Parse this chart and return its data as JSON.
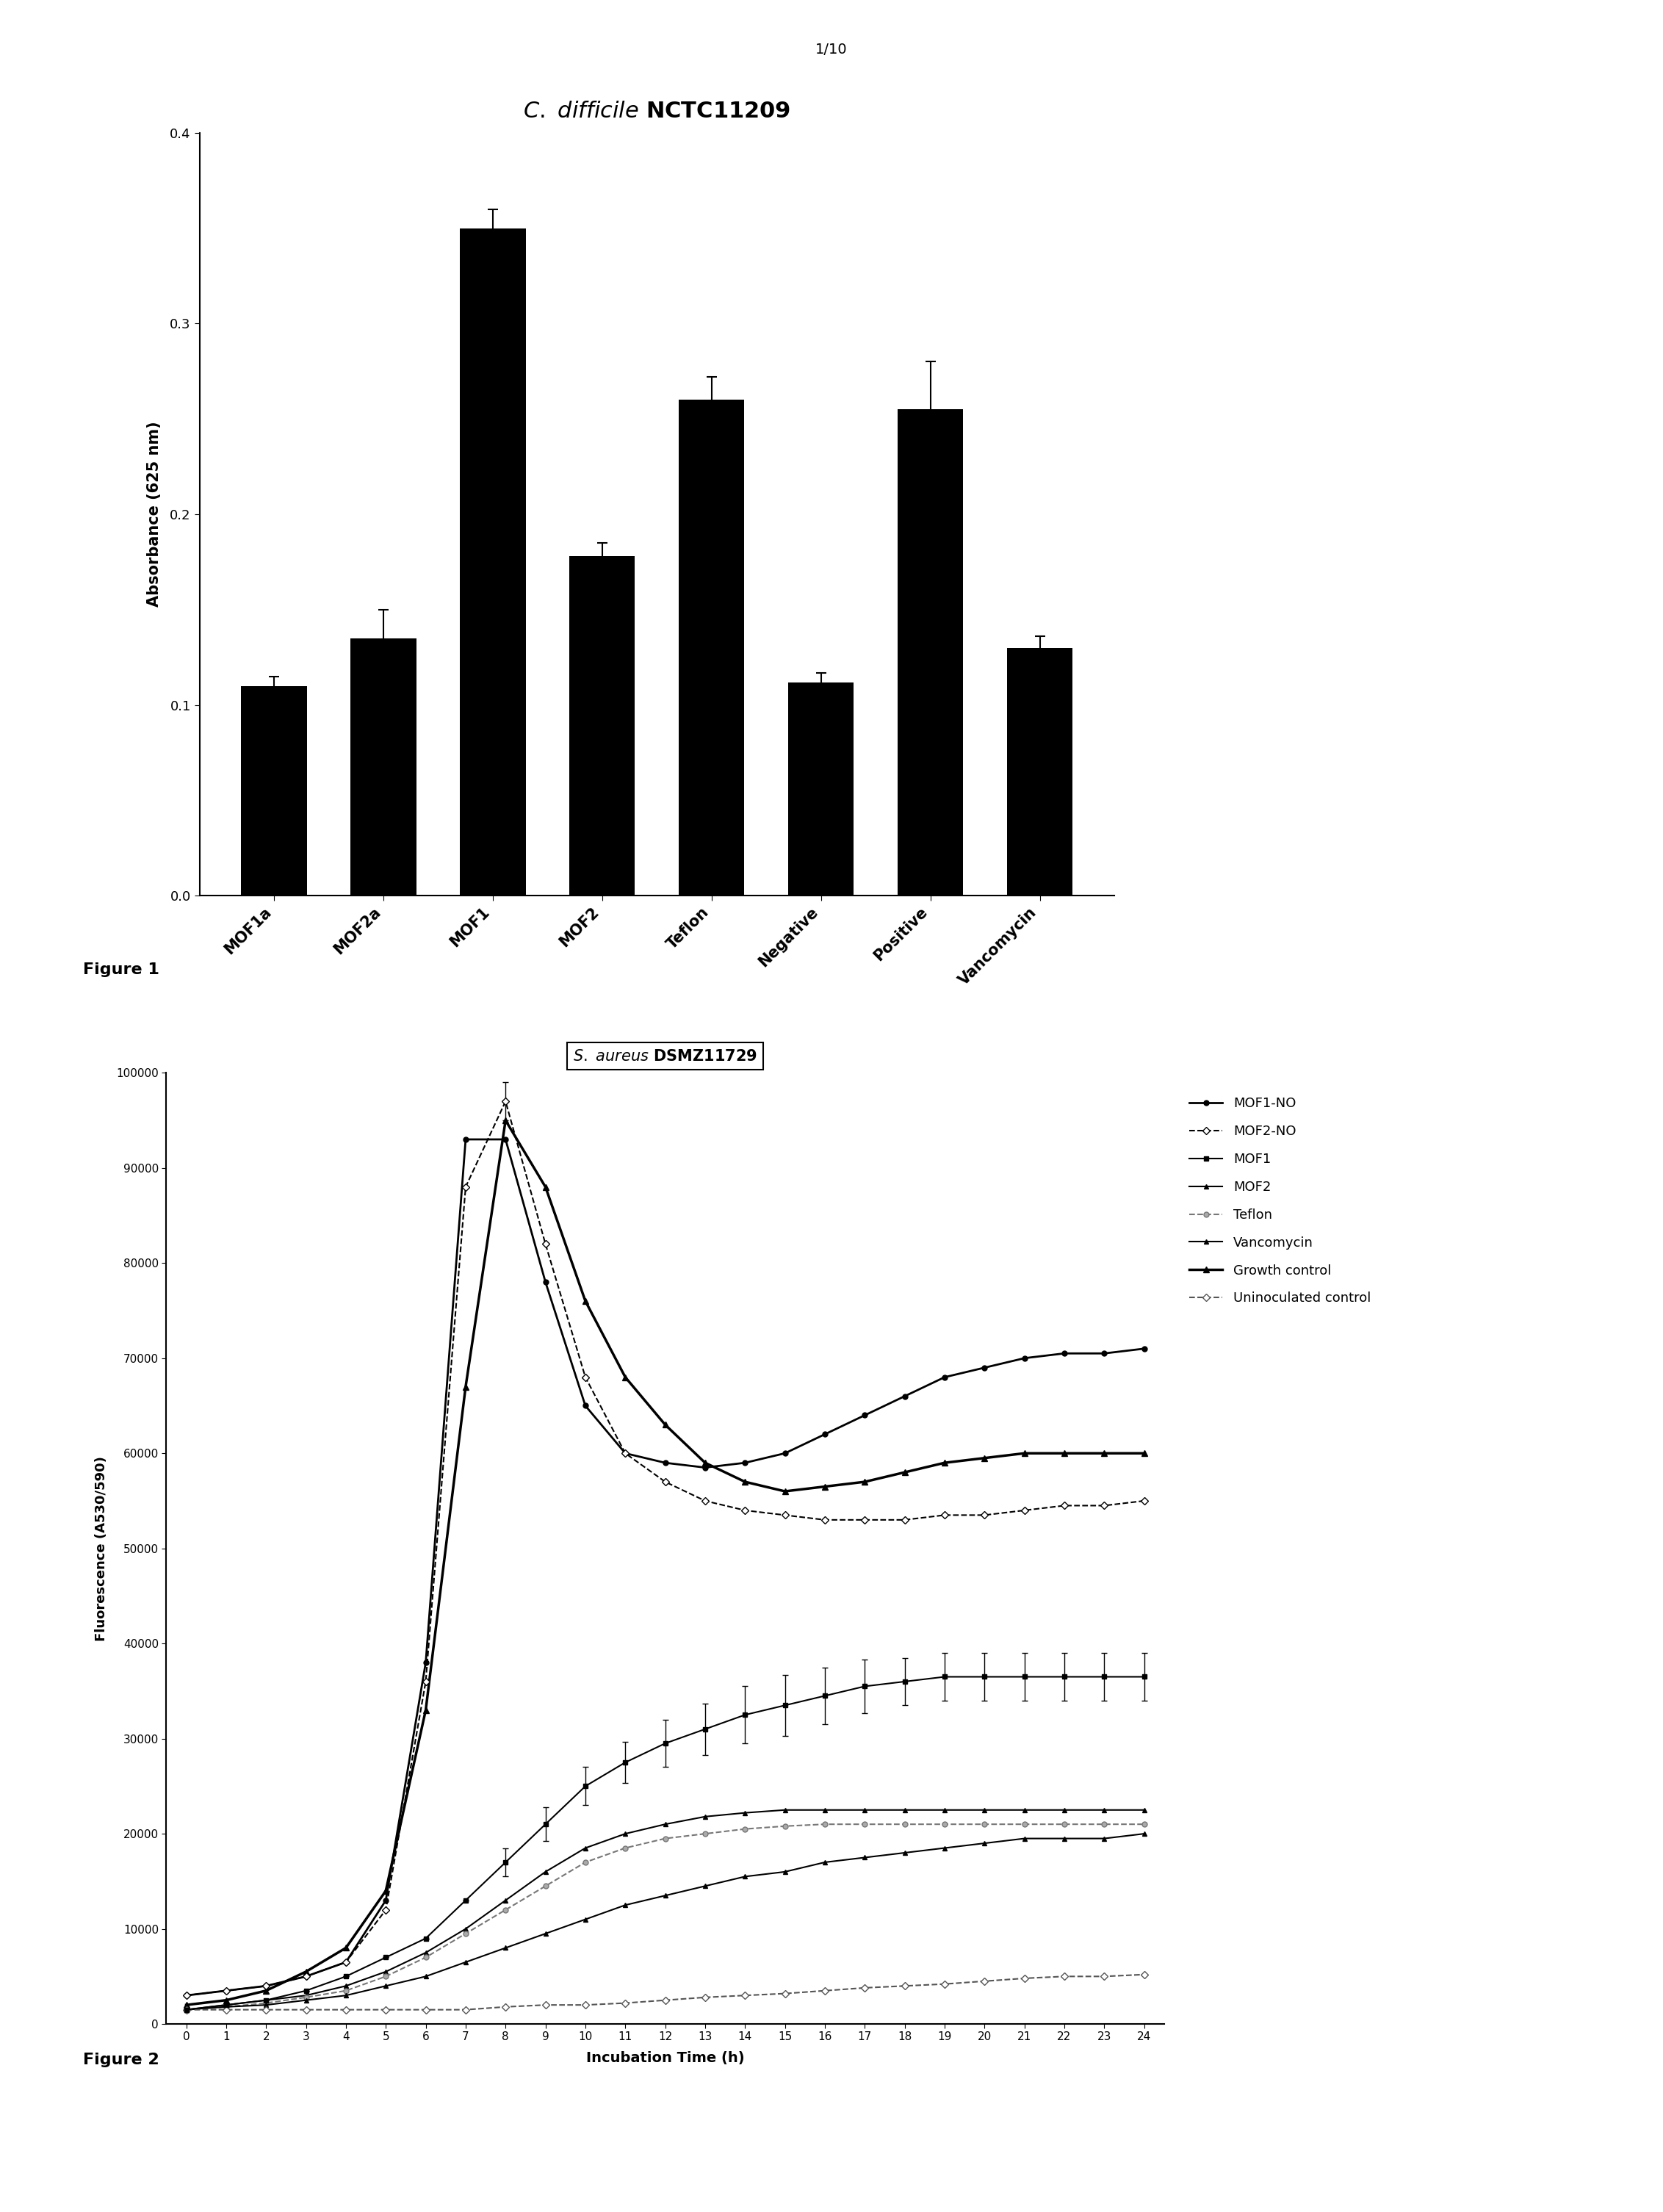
{
  "fig1": {
    "categories": [
      "MOF1a",
      "MOF2a",
      "MOF1",
      "MOF2",
      "Teflon",
      "Negative",
      "Positive",
      "Vancomycin"
    ],
    "values": [
      0.11,
      0.135,
      0.35,
      0.178,
      0.26,
      0.112,
      0.255,
      0.13
    ],
    "errors": [
      0.005,
      0.015,
      0.01,
      0.007,
      0.012,
      0.005,
      0.025,
      0.006
    ],
    "ylabel": "Absorbance (625 nm)",
    "ylim": [
      0.0,
      0.4
    ],
    "yticks": [
      0.0,
      0.1,
      0.2,
      0.3,
      0.4
    ],
    "bar_color": "#000000",
    "bar_width": 0.6
  },
  "fig2": {
    "ylabel": "Fluorescence (A530/590)",
    "xlabel": "Incubation Time (h)",
    "ylim": [
      0,
      100000
    ],
    "yticks": [
      0,
      10000,
      20000,
      30000,
      40000,
      50000,
      60000,
      70000,
      80000,
      90000,
      100000
    ],
    "xticks": [
      0,
      1,
      2,
      3,
      4,
      5,
      6,
      7,
      8,
      9,
      10,
      11,
      12,
      13,
      14,
      15,
      16,
      17,
      18,
      19,
      20,
      21,
      22,
      23,
      24
    ],
    "series": {
      "MOF1-NO": {
        "x": [
          0,
          1,
          2,
          3,
          4,
          5,
          6,
          7,
          8,
          9,
          10,
          11,
          12,
          13,
          14,
          15,
          16,
          17,
          18,
          19,
          20,
          21,
          22,
          23,
          24
        ],
        "y": [
          3000,
          3500,
          4000,
          5000,
          6500,
          13000,
          38000,
          93000,
          93000,
          78000,
          65000,
          60000,
          59000,
          58500,
          59000,
          60000,
          62000,
          64000,
          66000,
          68000,
          69000,
          70000,
          70500,
          70500,
          71000
        ],
        "errors": [
          null,
          null,
          null,
          null,
          null,
          null,
          null,
          null,
          null,
          null,
          null,
          null,
          null,
          null,
          null,
          null,
          null,
          null,
          null,
          null,
          null,
          null,
          null,
          null,
          null
        ],
        "marker": "o",
        "mfc": "#000000",
        "mec": "#000000",
        "ls": "-",
        "lw": 2.0,
        "ms": 5
      },
      "MOF2-NO": {
        "x": [
          0,
          1,
          2,
          3,
          4,
          5,
          6,
          7,
          8,
          9,
          10,
          11,
          12,
          13,
          14,
          15,
          16,
          17,
          18,
          19,
          20,
          21,
          22,
          23,
          24
        ],
        "y": [
          3000,
          3500,
          4000,
          5000,
          6500,
          12000,
          36000,
          88000,
          97000,
          82000,
          68000,
          60000,
          57000,
          55000,
          54000,
          53500,
          53000,
          53000,
          53000,
          53500,
          53500,
          54000,
          54500,
          54500,
          55000
        ],
        "errors": [
          null,
          null,
          null,
          null,
          null,
          null,
          null,
          null,
          2000,
          null,
          null,
          null,
          null,
          null,
          null,
          null,
          null,
          null,
          null,
          null,
          null,
          null,
          null,
          null,
          null
        ],
        "marker": "D",
        "mfc": "#ffffff",
        "mec": "#000000",
        "ls": "--",
        "lw": 1.5,
        "ms": 5
      },
      "MOF1": {
        "x": [
          0,
          1,
          2,
          3,
          4,
          5,
          6,
          7,
          8,
          9,
          10,
          11,
          12,
          13,
          14,
          15,
          16,
          17,
          18,
          19,
          20,
          21,
          22,
          23,
          24
        ],
        "y": [
          1500,
          2000,
          2500,
          3500,
          5000,
          7000,
          9000,
          13000,
          17000,
          21000,
          25000,
          27500,
          29500,
          31000,
          32500,
          33500,
          34500,
          35500,
          36000,
          36500,
          36500,
          36500,
          36500,
          36500,
          36500
        ],
        "errors": [
          null,
          null,
          null,
          null,
          null,
          null,
          null,
          null,
          1500,
          1800,
          2000,
          2200,
          2500,
          2700,
          3000,
          3200,
          3000,
          2800,
          2500,
          2500,
          2500,
          2500,
          2500,
          2500,
          2500
        ],
        "marker": "s",
        "mfc": "#000000",
        "mec": "#000000",
        "ls": "-",
        "lw": 1.5,
        "ms": 5
      },
      "MOF2": {
        "x": [
          0,
          1,
          2,
          3,
          4,
          5,
          6,
          7,
          8,
          9,
          10,
          11,
          12,
          13,
          14,
          15,
          16,
          17,
          18,
          19,
          20,
          21,
          22,
          23,
          24
        ],
        "y": [
          1500,
          2000,
          2500,
          3000,
          4000,
          5500,
          7500,
          10000,
          13000,
          16000,
          18500,
          20000,
          21000,
          21800,
          22200,
          22500,
          22500,
          22500,
          22500,
          22500,
          22500,
          22500,
          22500,
          22500,
          22500
        ],
        "errors": [
          null,
          null,
          null,
          null,
          null,
          null,
          null,
          null,
          null,
          null,
          null,
          null,
          null,
          null,
          null,
          null,
          null,
          null,
          null,
          null,
          null,
          null,
          null,
          null,
          null
        ],
        "marker": "^",
        "mfc": "#000000",
        "mec": "#000000",
        "ls": "-",
        "lw": 1.5,
        "ms": 5
      },
      "Teflon": {
        "x": [
          0,
          1,
          2,
          3,
          4,
          5,
          6,
          7,
          8,
          9,
          10,
          11,
          12,
          13,
          14,
          15,
          16,
          17,
          18,
          19,
          20,
          21,
          22,
          23,
          24
        ],
        "y": [
          1500,
          1800,
          2200,
          2800,
          3500,
          5000,
          7000,
          9500,
          12000,
          14500,
          17000,
          18500,
          19500,
          20000,
          20500,
          20800,
          21000,
          21000,
          21000,
          21000,
          21000,
          21000,
          21000,
          21000,
          21000
        ],
        "errors": [
          null,
          null,
          null,
          null,
          null,
          null,
          null,
          null,
          null,
          null,
          null,
          null,
          null,
          null,
          null,
          null,
          null,
          null,
          null,
          null,
          null,
          null,
          null,
          null,
          null
        ],
        "marker": "o",
        "mfc": "#aaaaaa",
        "mec": "#555555",
        "ls": "--",
        "lw": 1.5,
        "ms": 5
      },
      "Vancomycin": {
        "x": [
          0,
          1,
          2,
          3,
          4,
          5,
          6,
          7,
          8,
          9,
          10,
          11,
          12,
          13,
          14,
          15,
          16,
          17,
          18,
          19,
          20,
          21,
          22,
          23,
          24
        ],
        "y": [
          1500,
          1800,
          2000,
          2500,
          3000,
          4000,
          5000,
          6500,
          8000,
          9500,
          11000,
          12500,
          13500,
          14500,
          15500,
          16000,
          17000,
          17500,
          18000,
          18500,
          19000,
          19500,
          19500,
          19500,
          20000
        ],
        "errors": [
          null,
          null,
          null,
          null,
          null,
          null,
          null,
          null,
          null,
          null,
          null,
          null,
          null,
          null,
          null,
          null,
          null,
          null,
          null,
          null,
          null,
          null,
          null,
          null,
          null
        ],
        "marker": "^",
        "mfc": "#000000",
        "mec": "#000000",
        "ls": "-",
        "lw": 2.0,
        "ms": 5
      },
      "Growth control": {
        "x": [
          0,
          1,
          2,
          3,
          4,
          5,
          6,
          7,
          8,
          9,
          10,
          11,
          12,
          13,
          14,
          15,
          16,
          17,
          18,
          19,
          20,
          21,
          22,
          23,
          24
        ],
        "y": [
          2000,
          2500,
          3500,
          5500,
          8000,
          14000,
          33000,
          67000,
          95000,
          88000,
          76000,
          68000,
          63000,
          59000,
          57000,
          56000,
          56500,
          57000,
          58000,
          59000,
          59500,
          60000,
          60000,
          60000,
          60000
        ],
        "errors": [
          null,
          null,
          null,
          null,
          null,
          null,
          null,
          null,
          null,
          null,
          null,
          null,
          null,
          null,
          null,
          null,
          null,
          null,
          null,
          null,
          null,
          null,
          null,
          null,
          null
        ],
        "marker": "^",
        "mfc": "#000000",
        "mec": "#000000",
        "ls": "-",
        "lw": 2.5,
        "ms": 6
      },
      "Uninoculated control": {
        "x": [
          0,
          1,
          2,
          3,
          4,
          5,
          6,
          7,
          8,
          9,
          10,
          11,
          12,
          13,
          14,
          15,
          16,
          17,
          18,
          19,
          20,
          21,
          22,
          23,
          24
        ],
        "y": [
          1500,
          1500,
          1500,
          1500,
          1500,
          1500,
          1500,
          1500,
          1800,
          2000,
          2000,
          2200,
          2500,
          2800,
          3000,
          3200,
          3500,
          3800,
          4000,
          4200,
          4500,
          4800,
          5000,
          5000,
          5200
        ],
        "errors": [
          null,
          null,
          null,
          null,
          null,
          null,
          null,
          null,
          null,
          null,
          null,
          null,
          null,
          null,
          null,
          null,
          null,
          null,
          null,
          null,
          null,
          null,
          null,
          null,
          null
        ],
        "marker": "D",
        "mfc": "#ffffff",
        "mec": "#000000",
        "ls": "--",
        "lw": 1.5,
        "ms": 5
      }
    },
    "legend_order": [
      "MOF1-NO",
      "MOF2-NO",
      "MOF1",
      "MOF2",
      "Teflon",
      "Vancomycin",
      "Growth control",
      "Uninoculated control"
    ]
  },
  "figure1_label": "Figure 1",
  "figure2_label": "Figure 2",
  "page_label": "1/10",
  "background_color": "#ffffff"
}
